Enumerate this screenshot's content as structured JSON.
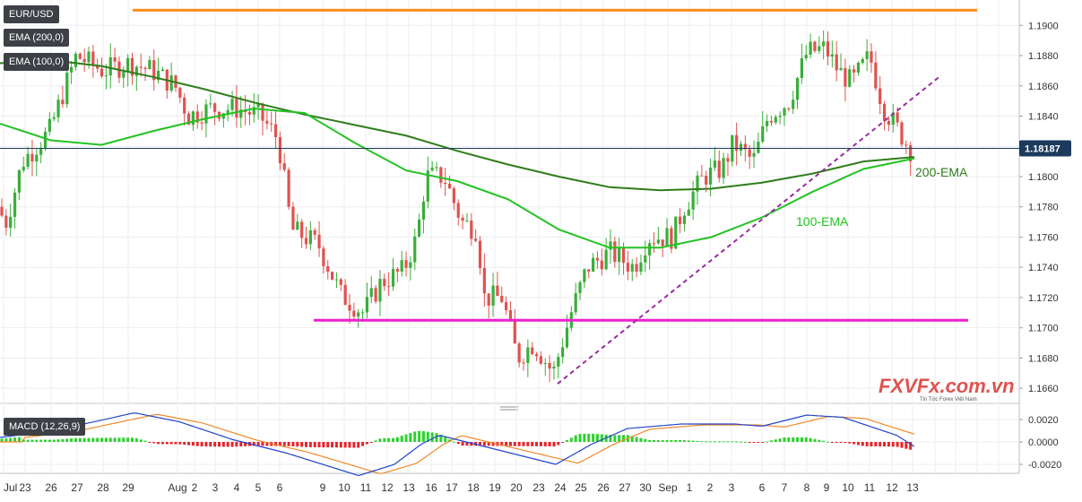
{
  "indicators": {
    "symbol": "EUR/USD",
    "ema200": "EMA (200,0)",
    "ema100": "EMA (100,0)",
    "macd": "MACD (12,26,9)"
  },
  "annotations": {
    "ema200_label": "200-EMA",
    "ema100_label": "100-EMA",
    "last_price": "1.18187"
  },
  "logo": {
    "main": "FXVFx.com.vn",
    "tagline": "Tin Tức Forex Việt Nam"
  },
  "colors": {
    "background": "#ffffff",
    "up_candle": "#3aae3a",
    "down_candle": "#e0524f",
    "ema200": "#2e7d1a",
    "ema100": "#22c322",
    "resistance": "#ff8c1a",
    "support": "#ee1fd0",
    "trendline": "#9a2ca0",
    "macd_line": "#2546c9",
    "signal_line": "#f08a28",
    "price_tag": "#1c3a5e",
    "label_bg": "#3d4046"
  },
  "chart_data": [
    {
      "type": "candlestick",
      "title": "EUR/USD",
      "ylim": [
        1.165,
        1.1915
      ],
      "yticks": [
        "1.1900",
        "1.1880",
        "1.1860",
        "1.1840",
        "1.1820",
        "1.1800",
        "1.1780",
        "1.1760",
        "1.1740",
        "1.1720",
        "1.1700",
        "1.1680",
        "1.1660"
      ],
      "x_labels": [
        "Jul",
        "23",
        "26",
        "27",
        "28",
        "29",
        "Aug",
        "2",
        "3",
        "4",
        "5",
        "6",
        "9",
        "10",
        "11",
        "12",
        "13",
        "16",
        "17",
        "18",
        "19",
        "20",
        "23",
        "24",
        "25",
        "26",
        "27",
        "30",
        "Sep",
        "1",
        "2",
        "3",
        "6",
        "7",
        "8",
        "9",
        "10",
        "11",
        "12",
        "13"
      ],
      "levels": [
        {
          "name": "resistance",
          "y": 1.191,
          "x_from": "29",
          "x_to": "12"
        },
        {
          "name": "support",
          "y": 1.1705,
          "x_from": "9",
          "x_to": "12"
        }
      ],
      "trendline": {
        "from": {
          "x": "20",
          "y": 1.1663
        },
        "to": {
          "x": "9",
          "y": 1.1867
        }
      },
      "last_price": 1.18187,
      "ema200": [
        1.1875,
        1.1877,
        1.1873,
        1.1866,
        1.1858,
        1.1849,
        1.1841,
        1.1834,
        1.1827,
        1.1817,
        1.1808,
        1.18,
        1.1793,
        1.1791,
        1.1792,
        1.1796,
        1.1802,
        1.181,
        1.1813
      ],
      "ema100": [
        1.1835,
        1.1824,
        1.1821,
        1.183,
        1.1838,
        1.1845,
        1.1842,
        1.1822,
        1.1804,
        1.1797,
        1.1785,
        1.1765,
        1.1753,
        1.1753,
        1.176,
        1.1773,
        1.179,
        1.1805,
        1.1812
      ]
    },
    {
      "type": "macd",
      "title": "MACD (12,26,9)",
      "ylim": [
        -0.0028,
        0.0028
      ],
      "yticks": [
        "0.0020",
        "0.0000",
        "-0.0020"
      ]
    }
  ]
}
